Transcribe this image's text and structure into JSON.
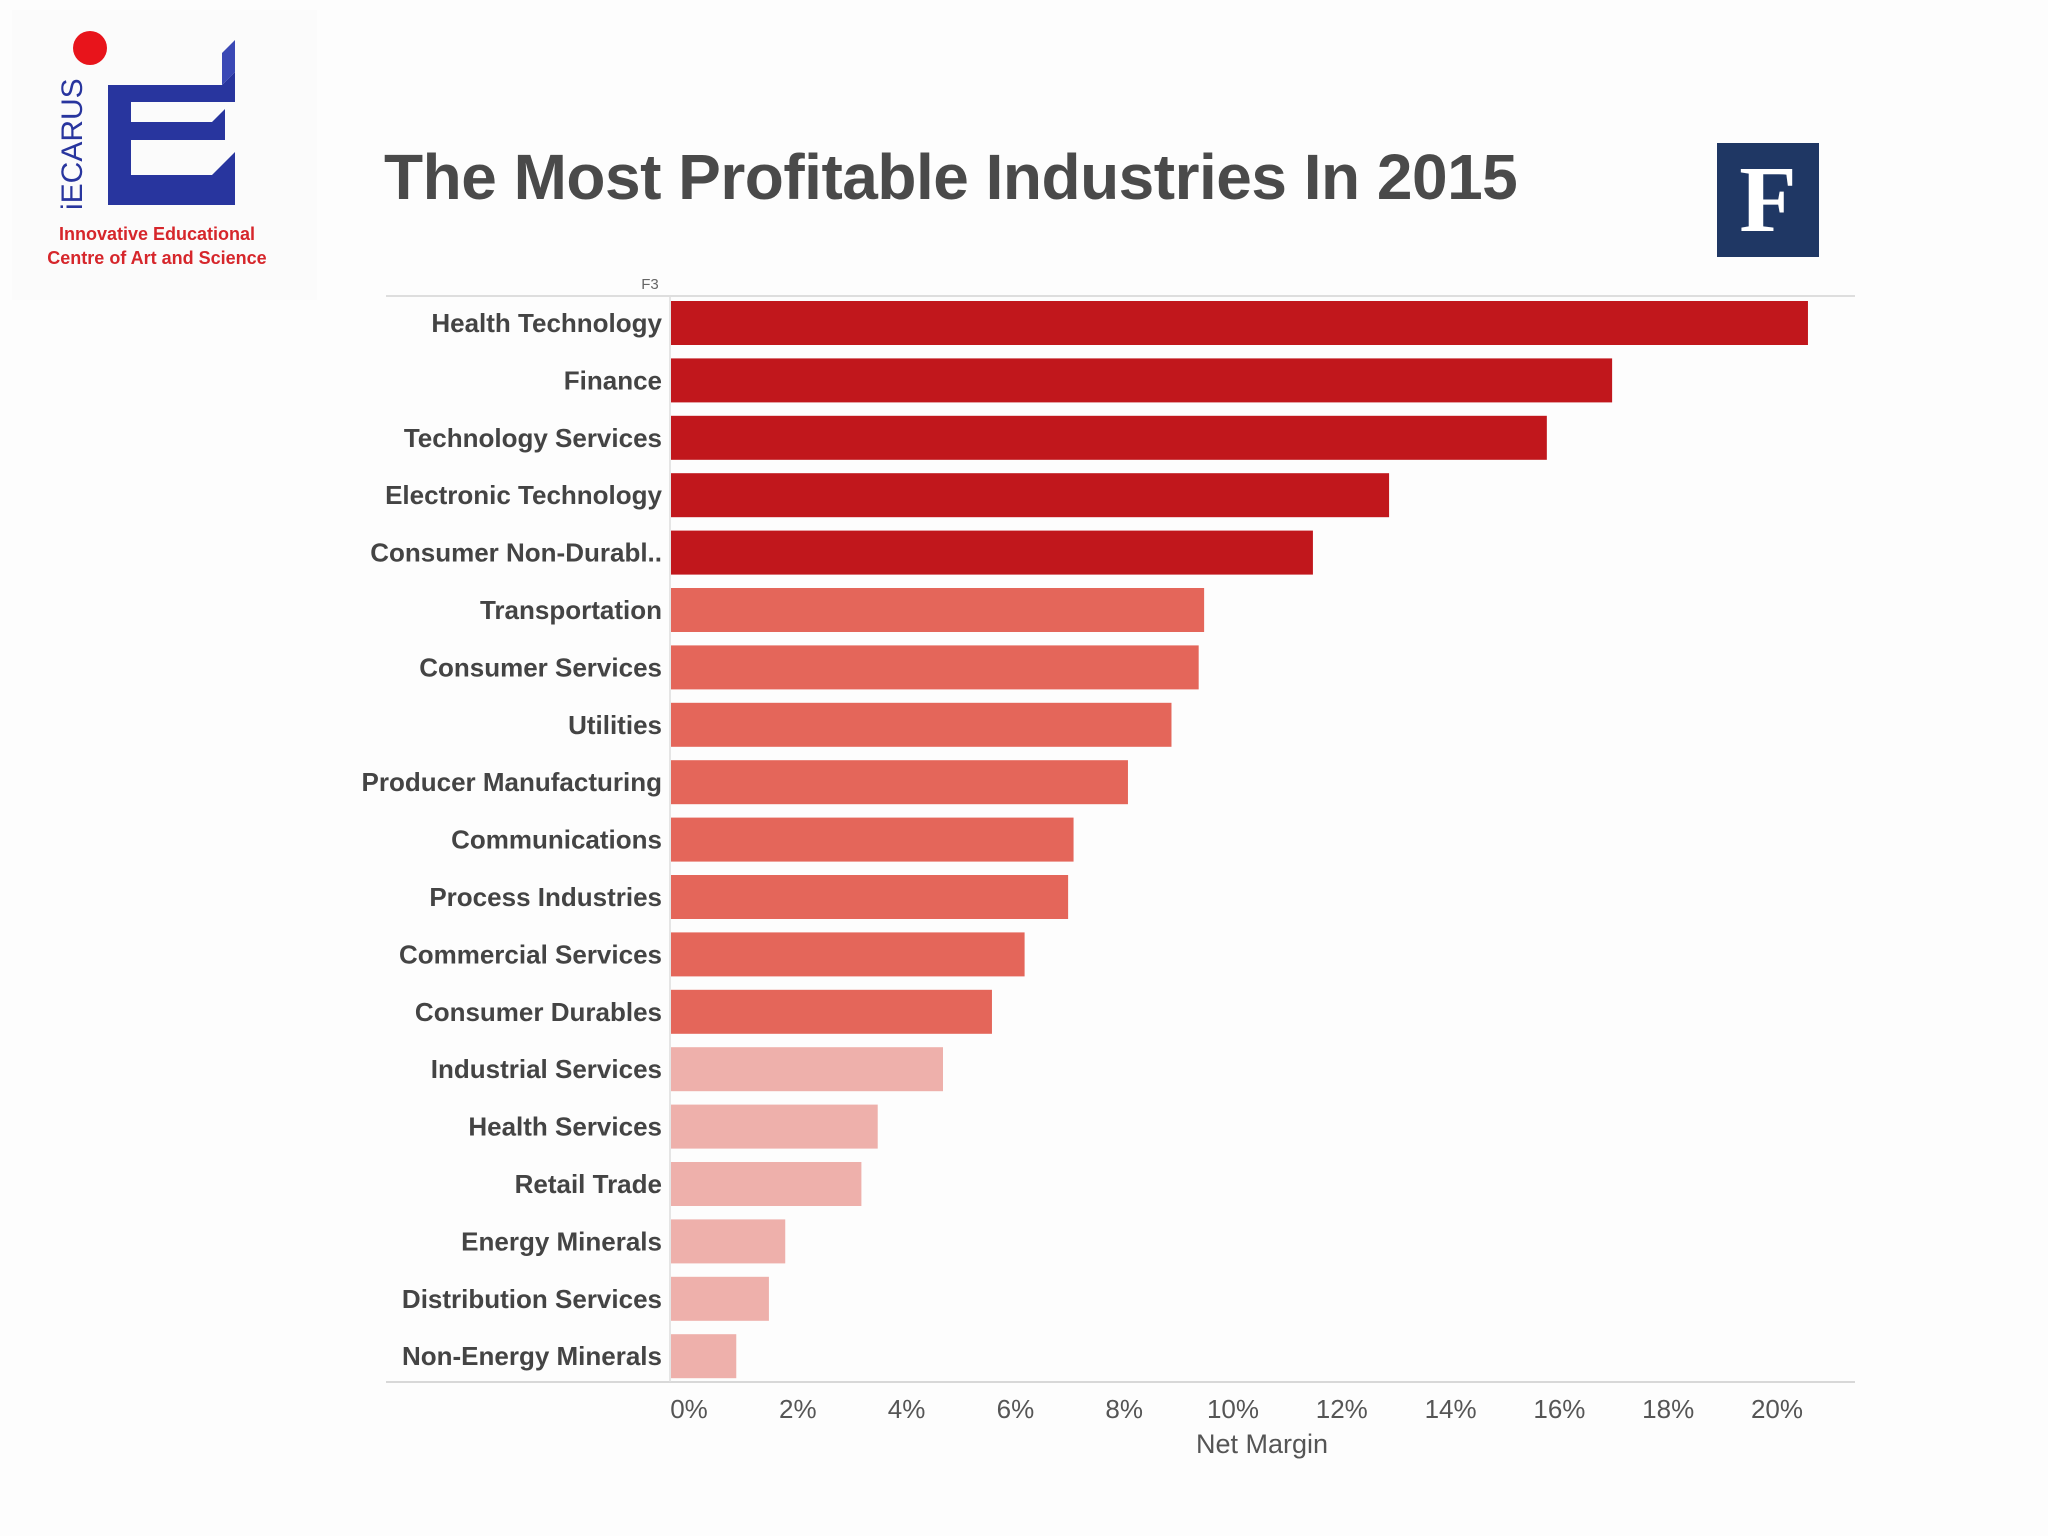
{
  "logo": {
    "name_text": "iECARUS",
    "caption_line1": "Innovative Educational",
    "caption_line2": "Centre of Art and Science"
  },
  "badge": {
    "letter": "F"
  },
  "chart_data": {
    "type": "bar",
    "orientation": "horizontal",
    "title": "The Most Profitable Industries In 2015",
    "row_header": "F3",
    "xlabel": "Net Margin",
    "ylabel": "",
    "xlim": [
      0,
      21
    ],
    "x_ticks": [
      "0%",
      "2%",
      "4%",
      "6%",
      "8%",
      "10%",
      "12%",
      "14%",
      "16%",
      "18%",
      "20%"
    ],
    "categories": [
      "Health Technology",
      "Finance",
      "Technology Services",
      "Electronic Technology",
      "Consumer Non-Durabl..",
      "Transportation",
      "Consumer Services",
      "Utilities",
      "Producer Manufacturing",
      "Communications",
      "Process Industries",
      "Commercial Services",
      "Consumer Durables",
      "Industrial Services",
      "Health Services",
      "Retail Trade",
      "Energy Minerals",
      "Distribution Services",
      "Non-Energy Minerals"
    ],
    "values": [
      20.9,
      17.3,
      16.1,
      13.2,
      11.8,
      9.8,
      9.7,
      9.2,
      8.4,
      7.4,
      7.3,
      6.5,
      5.9,
      5.0,
      3.8,
      3.5,
      2.1,
      1.8,
      1.2
    ],
    "colors": {
      "high": "#c1171c",
      "mid": "#e4665a",
      "low": "#eeb0ab",
      "axis": "#cccccc"
    },
    "grid": false
  }
}
